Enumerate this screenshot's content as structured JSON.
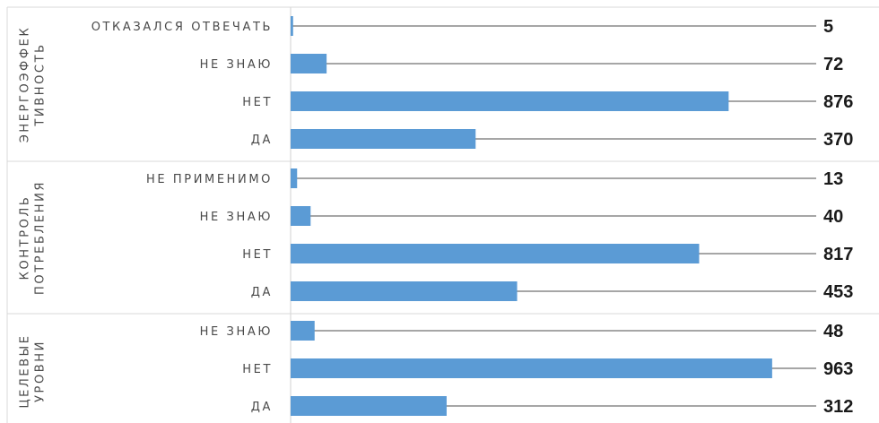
{
  "chart_data": {
    "type": "bar",
    "orientation": "horizontal",
    "title": "",
    "xlabel": "",
    "ylabel": "",
    "bar_color": "#5b9bd5",
    "leader_line_color": "#a6a6a6",
    "grid": false,
    "legend": "none",
    "groups": [
      {
        "label": "ЭНЕРГОЭФФЕК ТИВНОСТЬ",
        "label_lines": [
          "ЭНЕРГОЭФФЕК",
          "ТИВНОСТЬ"
        ],
        "items": [
          {
            "category": "ОТКАЗАЛСЯ ОТВЕЧАТЬ",
            "value": 5,
            "value_label": "5"
          },
          {
            "category": "НЕ ЗНАЮ",
            "value": 72,
            "value_label": "72"
          },
          {
            "category": "НЕТ",
            "value": 876,
            "value_label": "876"
          },
          {
            "category": "ДА",
            "value": 370,
            "value_label": "370"
          }
        ]
      },
      {
        "label": "КОНТРОЛЬ ПОТРЕБЛЕНИЯ",
        "label_lines": [
          "КОНТРОЛЬ",
          "ПОТРЕБЛЕНИЯ"
        ],
        "items": [
          {
            "category": "НЕ ПРИМЕНИМО",
            "value": 13,
            "value_label": "13"
          },
          {
            "category": "НЕ ЗНАЮ",
            "value": 40,
            "value_label": "40"
          },
          {
            "category": "НЕТ",
            "value": 817,
            "value_label": "817"
          },
          {
            "category": "ДА",
            "value": 453,
            "value_label": "453"
          }
        ]
      },
      {
        "label": "ЦЕЛЕВЫЕ УРОВНИ",
        "label_lines": [
          "ЦЕЛЕВЫЕ",
          "УРОВНИ"
        ],
        "items": [
          {
            "category": "НЕ ЗНАЮ",
            "value": 48,
            "value_label": "48"
          },
          {
            "category": "НЕТ",
            "value": 963,
            "value_label": "963"
          },
          {
            "category": "ДА",
            "value": 312,
            "value_label": "312"
          }
        ]
      }
    ]
  }
}
